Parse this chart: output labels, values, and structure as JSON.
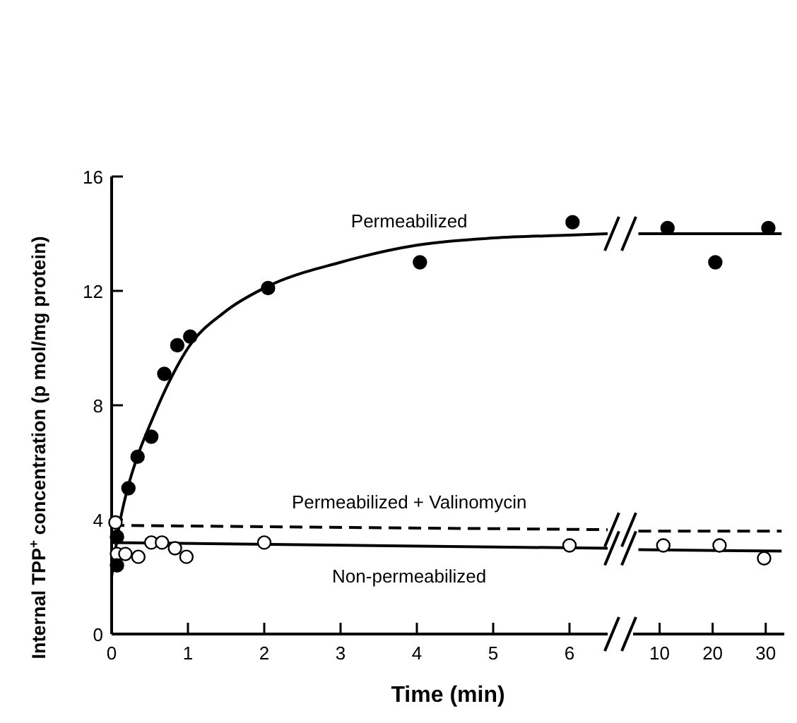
{
  "chart_data": [
    {
      "type": "scatter",
      "xlabel": "Time (min)",
      "ylabel": "Internal TPP$^{+}$ concentration (p mol/mg protein)",
      "xlim": [
        0,
        6.5
      ],
      "xticks": [
        0,
        1,
        2,
        3,
        4,
        5,
        6
      ],
      "ylim": [
        0,
        16
      ],
      "yticks": [
        0,
        4,
        8,
        12,
        16
      ],
      "grid": false,
      "series": [
        {
          "marker": "circle",
          "color": "#000000",
          "x": [
            0.07,
            0.07,
            0.22,
            0.34,
            0.52,
            0.69,
            0.86,
            1.03,
            2.05,
            4.04,
            6.04
          ],
          "values": [
            2.4,
            3.4,
            5.1,
            6.2,
            6.9,
            9.1,
            10.1,
            10.4,
            12.1,
            13.0,
            14.4
          ]
        },
        {
          "marker": "circle",
          "color": "#ffffff",
          "x": [
            0.05,
            0.07,
            0.18,
            0.35,
            0.52,
            0.66,
            0.83,
            0.98,
            2.0,
            6.0
          ],
          "values": [
            3.9,
            2.8,
            2.8,
            2.7,
            3.2,
            3.2,
            3.0,
            2.7,
            3.2,
            3.1
          ]
        },
        {
          "type": "line",
          "name": "Permeabilized",
          "color": "#000000",
          "line_style": "solid",
          "x": [
            0,
            0.1,
            0.2,
            0.35,
            0.5,
            0.75,
            1,
            1.5,
            2,
            3,
            4,
            5,
            6,
            6.5
          ],
          "values": [
            2.0,
            3.8,
            5.0,
            6.3,
            7.3,
            8.8,
            10.0,
            11.3,
            12.1,
            13.0,
            13.6,
            13.85,
            13.95,
            14.0
          ]
        },
        {
          "type": "line",
          "name": "Permeabilized + Valinomycin",
          "color": "#000000",
          "line_style": "dashed",
          "x": [
            0,
            6.5
          ],
          "values": [
            3.8,
            3.65
          ]
        },
        {
          "type": "line",
          "name": "Non-permeabilized",
          "color": "#000000",
          "line_style": "solid",
          "x": [
            0,
            6.5
          ],
          "values": [
            3.2,
            3.0
          ]
        }
      ]
    },
    {
      "type": "scatter",
      "xlim": [
        5,
        33.5
      ],
      "xticks": [
        10,
        20,
        30
      ],
      "ylim": [
        0,
        16
      ],
      "tick_labels": "x",
      "grid": false,
      "series": [
        {
          "marker": "circle",
          "color": "#000000",
          "x": [
            11.5,
            20.5,
            30.5
          ],
          "values": [
            14.2,
            13.0,
            14.2
          ]
        },
        {
          "marker": "circle",
          "color": "#ffffff",
          "x": [
            10.7,
            21.3,
            29.7
          ],
          "values": [
            3.1,
            3.1,
            2.65
          ]
        },
        {
          "type": "line",
          "color": "#000000",
          "line_style": "solid",
          "x": [
            6,
            33
          ],
          "values": [
            14.0,
            14.0
          ]
        },
        {
          "type": "line",
          "color": "#000000",
          "line_style": "dashed",
          "x": [
            6,
            33
          ],
          "values": [
            3.6,
            3.6
          ]
        },
        {
          "type": "line",
          "color": "#000000",
          "line_style": "solid",
          "x": [
            6,
            33
          ],
          "values": [
            2.95,
            2.9
          ]
        }
      ]
    }
  ]
}
